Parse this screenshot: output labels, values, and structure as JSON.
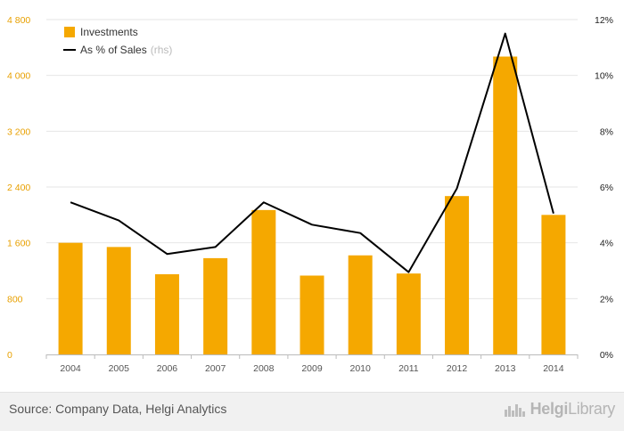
{
  "chart_data": {
    "type": "bar",
    "categories": [
      "2004",
      "2005",
      "2006",
      "2007",
      "2008",
      "2009",
      "2010",
      "2011",
      "2012",
      "2013",
      "2014"
    ],
    "series": [
      {
        "name": "Investments",
        "kind": "bar",
        "axis": "left",
        "color": "#f5a800",
        "values": [
          1600,
          1540,
          1150,
          1380,
          2070,
          1130,
          1420,
          1160,
          2270,
          4270,
          2000
        ]
      },
      {
        "name": "As % of Sales",
        "name_suffix": "(rhs)",
        "kind": "line",
        "axis": "right",
        "color": "#000000",
        "values": [
          5.45,
          4.8,
          3.6,
          3.85,
          5.45,
          4.65,
          4.35,
          2.95,
          5.95,
          11.5,
          5.05
        ]
      }
    ],
    "y_left": {
      "min": 0,
      "max": 4800,
      "ticks": [
        0,
        800,
        1600,
        2400,
        3200,
        4000,
        4800
      ],
      "tick_labels": [
        "0",
        "800",
        "1 600",
        "2 400",
        "3 200",
        "4 000",
        "4 800"
      ],
      "color": "#e8a000"
    },
    "y_right": {
      "min": 0,
      "max": 12,
      "ticks": [
        0,
        2,
        4,
        6,
        8,
        10,
        12
      ],
      "tick_labels": [
        "0%",
        "2%",
        "4%",
        "6%",
        "8%",
        "10%",
        "12%"
      ]
    },
    "grid": true,
    "legend_position": "top-left"
  },
  "footer": {
    "source": "Source: Company Data, Helgi Analytics",
    "brand_prefix": "Helgi",
    "brand_suffix": "Library",
    "brand_icon": "city-skyline-icon"
  }
}
